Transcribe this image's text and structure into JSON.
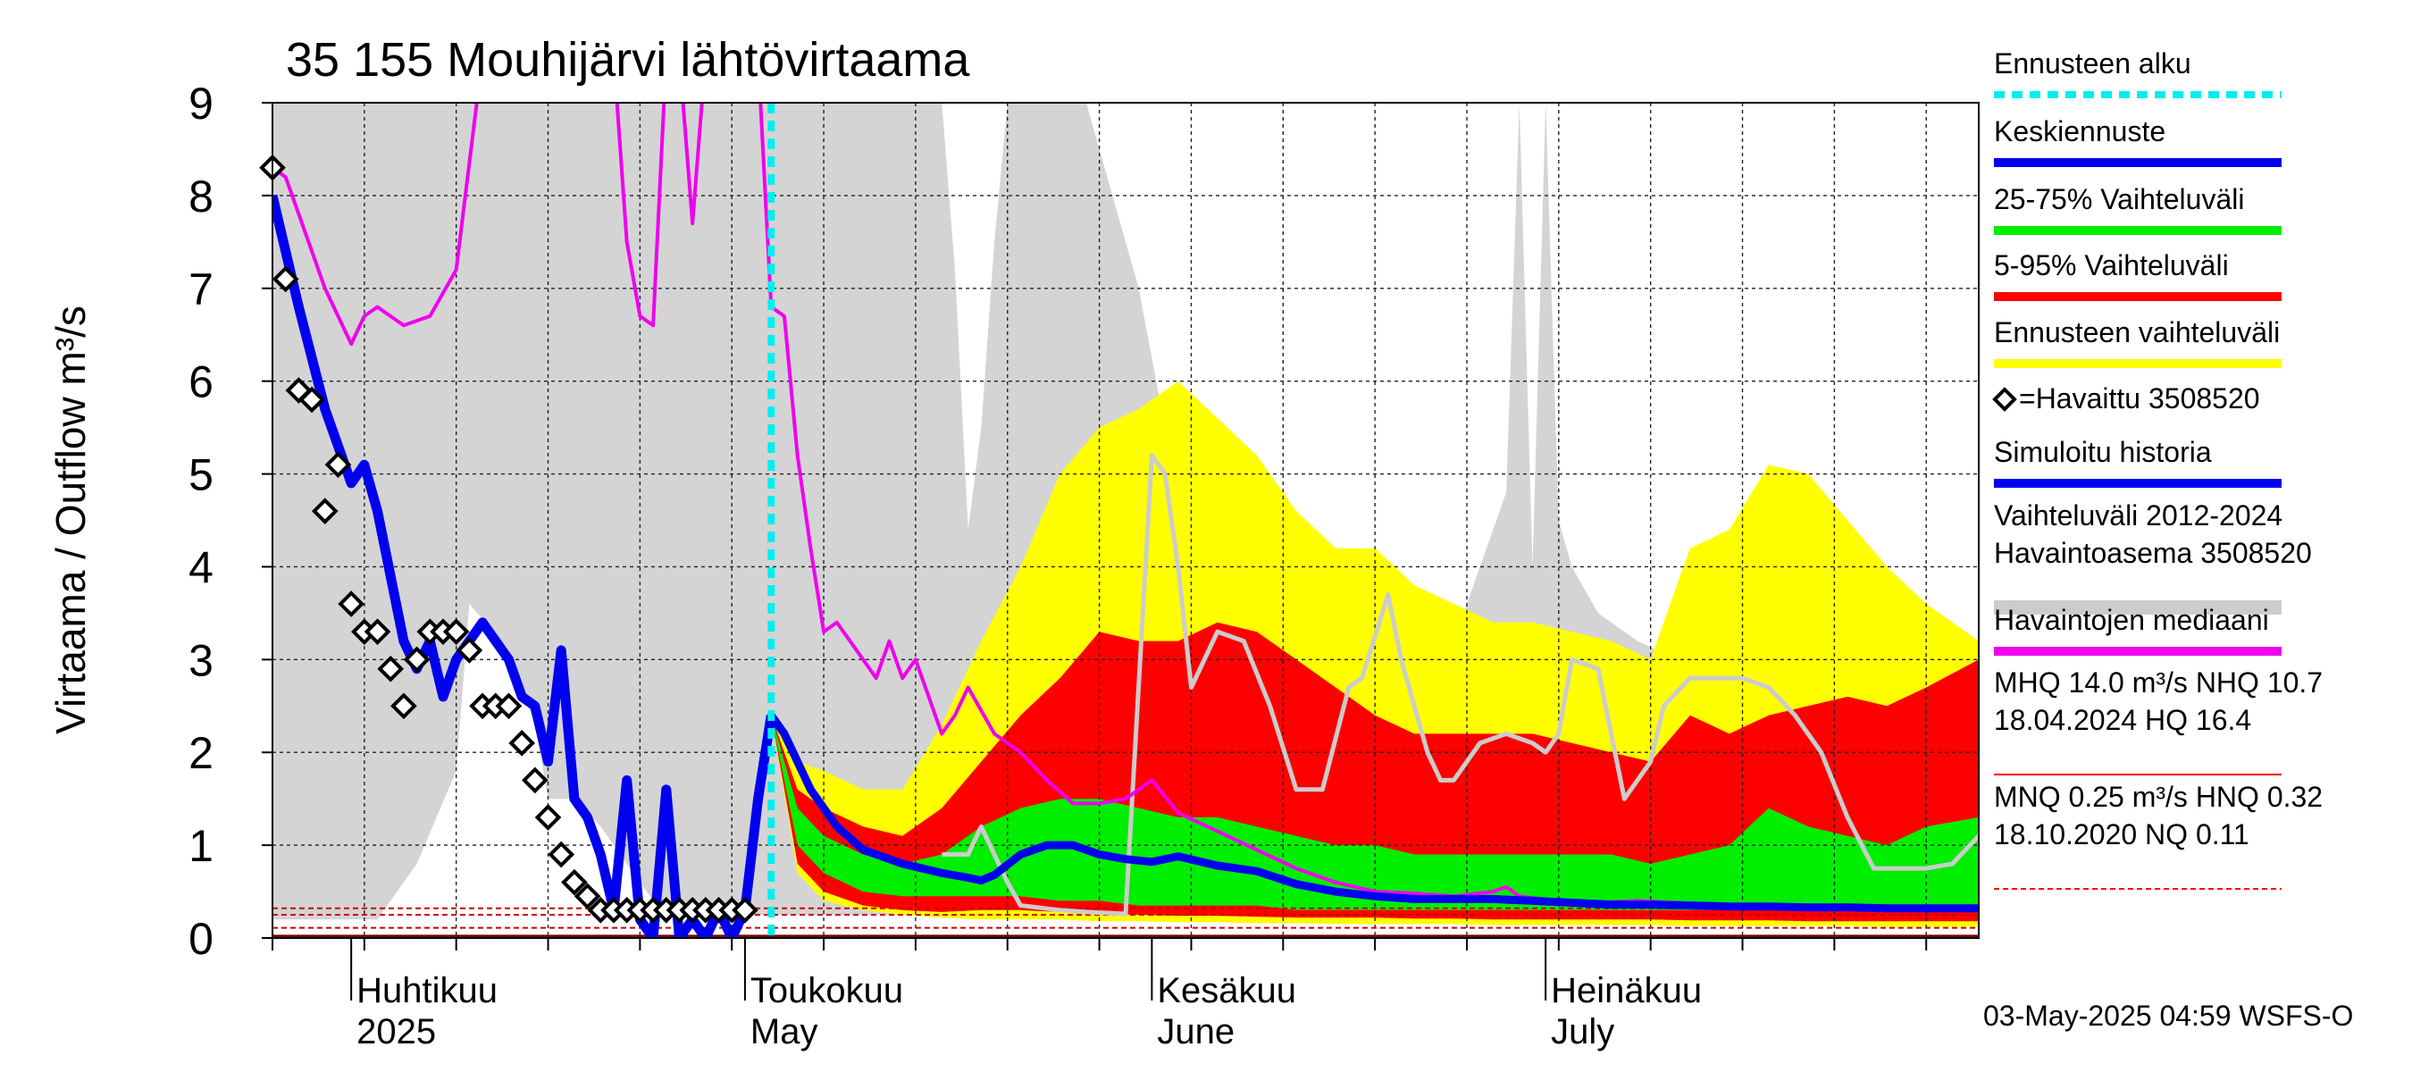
{
  "chart_title": "35 155 Mouhijärvi lähtövirtaama",
  "timestamp": "03-May-2025 04:59 WSFS-O",
  "colors": {
    "history": "#d4d4d4",
    "forecast_range": "#ffff00",
    "p5_95": "#ff0000",
    "p25_75": "#00ee00",
    "mean_forecast": "#0000ee",
    "simulated": "#0000ee",
    "median_obs": "#ee00ee",
    "forecast_start": "#00eeee",
    "light_gray_line": "#cccccc"
  },
  "legend": [
    {
      "label": "Ennusteen alku",
      "style": "dashed",
      "color": "#00eeee"
    },
    {
      "label": "Keskiennuste",
      "style": "line",
      "color": "#0000ee"
    },
    {
      "label": "25-75% Vaihteluväli",
      "style": "line",
      "color": "#00ee00"
    },
    {
      "label": "5-95% Vaihteluväli",
      "style": "line",
      "color": "#ff0000"
    },
    {
      "label": "Ennusteen vaihteluväli",
      "style": "line",
      "color": "#ffff00"
    },
    {
      "label": "=Havaittu 3508520",
      "style": "marker",
      "color": "#000000"
    },
    {
      "label": "Simuloitu historia",
      "style": "line",
      "color": "#0000ee"
    },
    {
      "label": "Vaihteluväli 2012-2024",
      "label2": " Havaintoasema 3508520",
      "style": "line",
      "color": "#cccccc"
    },
    {
      "label": "Havaintojen mediaani",
      "style": "line",
      "color": "#ee00ee"
    },
    {
      "label": "MHQ 14.0 m³/s NHQ 10.7",
      "label2": "18.04.2024 HQ 16.4",
      "style": "thin",
      "color": "#ff0000"
    },
    {
      "label": "MNQ 0.25 m³/s HNQ 0.32",
      "label2": "18.10.2020 NQ 0.11",
      "style": "dashed-thin",
      "color": "#ff0000"
    }
  ],
  "chart_data": {
    "type": "line",
    "title": "35 155 Mouhijärvi lähtövirtaama",
    "ylabel": "Virtaama / Outflow     m³/s",
    "ylim": [
      0,
      9
    ],
    "y_ticks": [
      "0",
      "1",
      "2",
      "3",
      "4",
      "5",
      "6",
      "7",
      "8",
      "9"
    ],
    "x_start": "2025-03-26",
    "x_end": "2025-08-03",
    "month_labels": [
      {
        "fi": "Huhtikuu",
        "en": "2025",
        "date": "2025-04-01"
      },
      {
        "fi": "Toukokuu",
        "en": "May",
        "date": "2025-05-01"
      },
      {
        "fi": "Kesäkuu",
        "en": "June",
        "date": "2025-06-01"
      },
      {
        "fi": "Heinäkuu",
        "en": "July",
        "date": "2025-07-01"
      }
    ],
    "grid": true,
    "forecast_start": "2025-05-03",
    "reference_lines": [
      {
        "name": "HNQ",
        "value": 0.32
      },
      {
        "name": "MNQ",
        "value": 0.25
      },
      {
        "name": "NQ",
        "value": 0.11
      }
    ],
    "history_range": {
      "dates": [
        "2025-03-26",
        "2025-04-03",
        "2025-04-06",
        "2025-04-09",
        "2025-04-10",
        "2025-04-13",
        "2025-04-15",
        "2025-04-16",
        "2025-04-18",
        "2025-04-20",
        "2025-04-22",
        "2025-04-24",
        "2025-04-26",
        "2025-05-01",
        "2025-05-05",
        "2025-05-08",
        "2025-05-10",
        "2025-05-12",
        "2025-05-14",
        "2025-05-16",
        "2025-05-17",
        "2025-05-18",
        "2025-05-19",
        "2025-05-20",
        "2025-05-21",
        "2025-05-23",
        "2025-05-25",
        "2025-05-27",
        "2025-05-29",
        "2025-05-31",
        "2025-06-02",
        "2025-06-04",
        "2025-06-06",
        "2025-06-09",
        "2025-06-12",
        "2025-06-15",
        "2025-06-18",
        "2025-06-21",
        "2025-06-24",
        "2025-06-26",
        "2025-06-28",
        "2025-06-29",
        "2025-06-30",
        "2025-07-01",
        "2025-07-02",
        "2025-07-03",
        "2025-07-05",
        "2025-07-08",
        "2025-07-11",
        "2025-07-14",
        "2025-07-17",
        "2025-07-20",
        "2025-07-23",
        "2025-07-26",
        "2025-07-29",
        "2025-08-03"
      ],
      "high": [
        9,
        9,
        9,
        9,
        9,
        9,
        9,
        9,
        9,
        9,
        9,
        9,
        9,
        9,
        9,
        9,
        9,
        9,
        9,
        9,
        7.2,
        4.4,
        5.5,
        7.5,
        9,
        9,
        9,
        9,
        8,
        7,
        5.5,
        5.5,
        5.5,
        5.2,
        4.5,
        4.0,
        3.6,
        3.0,
        3.2,
        4.0,
        4.8,
        9,
        4.0,
        9,
        4.5,
        4.0,
        3.5,
        3.2,
        3.0,
        3.0,
        3.0,
        3.0,
        2.8,
        2.5,
        2.4,
        2.4
      ],
      "low": [
        0.2,
        0.2,
        0.8,
        1.8,
        3.6,
        3.1,
        2.3,
        1.5,
        1.5,
        1.2,
        0.8,
        0.4,
        0.3,
        0.25,
        0.25,
        0.25,
        0.25,
        0.25,
        0.25,
        0.25,
        0.25,
        0.25,
        0.25,
        0.25,
        0.25,
        0.25,
        0.25,
        0.25,
        0.25,
        0.25,
        0.25,
        0.25,
        0.25,
        0.25,
        0.25,
        0.25,
        0.25,
        0.25,
        0.25,
        0.25,
        0.25,
        0.25,
        0.25,
        0.25,
        0.25,
        0.25,
        0.25,
        0.25,
        0.25,
        0.25,
        0.25,
        0.25,
        0.25,
        0.25,
        0.25,
        0.25
      ]
    },
    "forecast_band": {
      "dates": [
        "2025-05-03",
        "2025-05-05",
        "2025-05-07",
        "2025-05-10",
        "2025-05-13",
        "2025-05-16",
        "2025-05-19",
        "2025-05-22",
        "2025-05-25",
        "2025-05-28",
        "2025-05-31",
        "2025-06-03",
        "2025-06-06",
        "2025-06-09",
        "2025-06-12",
        "2025-06-15",
        "2025-06-18",
        "2025-06-21",
        "2025-06-24",
        "2025-06-27",
        "2025-06-30",
        "2025-07-03",
        "2025-07-06",
        "2025-07-09",
        "2025-07-12",
        "2025-07-15",
        "2025-07-18",
        "2025-07-21",
        "2025-07-24",
        "2025-07-27",
        "2025-07-30",
        "2025-08-03"
      ],
      "max": [
        2.4,
        1.9,
        1.8,
        1.6,
        1.6,
        2.3,
        3.2,
        4.0,
        5.0,
        5.5,
        5.7,
        6.0,
        5.6,
        5.2,
        4.6,
        4.2,
        4.2,
        3.8,
        3.6,
        3.4,
        3.4,
        3.3,
        3.2,
        3.0,
        4.2,
        4.4,
        5.1,
        5.0,
        4.5,
        4.0,
        3.6,
        3.2
      ],
      "p95": [
        2.4,
        1.6,
        1.4,
        1.2,
        1.1,
        1.4,
        1.9,
        2.4,
        2.8,
        3.3,
        3.2,
        3.2,
        3.4,
        3.3,
        3.0,
        2.7,
        2.4,
        2.2,
        2.2,
        2.2,
        2.2,
        2.1,
        2.0,
        1.9,
        2.4,
        2.2,
        2.4,
        2.5,
        2.6,
        2.5,
        2.7,
        3.0
      ],
      "p75": [
        2.4,
        1.4,
        1.1,
        0.9,
        0.8,
        0.9,
        1.2,
        1.4,
        1.5,
        1.5,
        1.4,
        1.3,
        1.3,
        1.2,
        1.1,
        1.0,
        1.0,
        0.9,
        0.9,
        0.9,
        0.9,
        0.9,
        0.9,
        0.8,
        0.9,
        1.0,
        1.4,
        1.2,
        1.1,
        1.0,
        1.2,
        1.3
      ],
      "p25": [
        2.4,
        1.0,
        0.7,
        0.5,
        0.45,
        0.45,
        0.45,
        0.45,
        0.4,
        0.4,
        0.35,
        0.35,
        0.35,
        0.35,
        0.3,
        0.3,
        0.3,
        0.3,
        0.3,
        0.3,
        0.3,
        0.3,
        0.3,
        0.3,
        0.3,
        0.3,
        0.3,
        0.3,
        0.3,
        0.3,
        0.3,
        0.3
      ],
      "p5": [
        2.4,
        0.8,
        0.5,
        0.35,
        0.3,
        0.28,
        0.3,
        0.3,
        0.28,
        0.26,
        0.25,
        0.24,
        0.24,
        0.23,
        0.22,
        0.22,
        0.22,
        0.21,
        0.21,
        0.2,
        0.2,
        0.2,
        0.2,
        0.2,
        0.19,
        0.19,
        0.19,
        0.18,
        0.18,
        0.18,
        0.18,
        0.18
      ],
      "min": [
        2.4,
        0.7,
        0.4,
        0.3,
        0.25,
        0.22,
        0.2,
        0.2,
        0.2,
        0.18,
        0.18,
        0.17,
        0.17,
        0.16,
        0.16,
        0.15,
        0.15,
        0.15,
        0.15,
        0.14,
        0.14,
        0.14,
        0.14,
        0.14,
        0.13,
        0.13,
        0.13,
        0.13,
        0.13,
        0.12,
        0.12,
        0.12
      ]
    },
    "series": [
      {
        "name": "Keskiennuste",
        "dates": [
          "2025-05-03",
          "2025-05-04",
          "2025-05-06",
          "2025-05-08",
          "2025-05-10",
          "2025-05-13",
          "2025-05-16",
          "2025-05-18",
          "2025-05-19",
          "2025-05-20",
          "2025-05-22",
          "2025-05-24",
          "2025-05-26",
          "2025-05-28",
          "2025-05-30",
          "2025-06-01",
          "2025-06-03",
          "2025-06-06",
          "2025-06-09",
          "2025-06-12",
          "2025-06-15",
          "2025-06-18",
          "2025-06-21",
          "2025-06-24",
          "2025-06-27",
          "2025-06-30",
          "2025-07-03",
          "2025-07-06",
          "2025-07-09",
          "2025-07-12",
          "2025-07-15",
          "2025-07-18",
          "2025-07-21",
          "2025-07-24",
          "2025-07-27",
          "2025-07-30",
          "2025-08-03"
        ],
        "values": [
          2.4,
          2.2,
          1.6,
          1.2,
          0.95,
          0.8,
          0.7,
          0.65,
          0.62,
          0.68,
          0.9,
          1.0,
          1.0,
          0.9,
          0.85,
          0.82,
          0.88,
          0.78,
          0.72,
          0.58,
          0.5,
          0.45,
          0.42,
          0.42,
          0.42,
          0.4,
          0.38,
          0.36,
          0.36,
          0.35,
          0.34,
          0.34,
          0.33,
          0.33,
          0.32,
          0.32,
          0.32
        ]
      },
      {
        "name": "Simuloitu historia",
        "dates": [
          "2025-03-26",
          "2025-03-28",
          "2025-03-30",
          "2025-04-01",
          "2025-04-02",
          "2025-04-03",
          "2025-04-05",
          "2025-04-06",
          "2025-04-07",
          "2025-04-08",
          "2025-04-09",
          "2025-04-10",
          "2025-04-11",
          "2025-04-12",
          "2025-04-13",
          "2025-04-14",
          "2025-04-15",
          "2025-04-16",
          "2025-04-17",
          "2025-04-18",
          "2025-04-19",
          "2025-04-20",
          "2025-04-21",
          "2025-04-22",
          "2025-04-23",
          "2025-04-24",
          "2025-04-25",
          "2025-04-26",
          "2025-04-27",
          "2025-04-28",
          "2025-04-29",
          "2025-04-30",
          "2025-05-01",
          "2025-05-02",
          "2025-05-03"
        ],
        "values": [
          8.0,
          6.8,
          5.7,
          4.9,
          5.1,
          4.6,
          3.2,
          2.9,
          3.2,
          2.6,
          3.0,
          3.2,
          3.4,
          3.2,
          3.0,
          2.6,
          2.5,
          1.9,
          3.1,
          1.5,
          1.3,
          0.9,
          0.3,
          1.7,
          0.2,
          0.0,
          1.6,
          0.0,
          0.2,
          0.0,
          0.3,
          0.0,
          0.3,
          1.5,
          2.4
        ]
      },
      {
        "name": "Havaintojen mediaani",
        "dates": [
          "2025-03-26",
          "2025-03-27",
          "2025-03-30",
          "2025-04-01",
          "2025-04-02",
          "2025-04-03",
          "2025-04-05",
          "2025-04-07",
          "2025-04-09",
          "2025-04-11",
          "2025-04-13",
          "2025-04-15",
          "2025-04-17",
          "2025-04-19",
          "2025-04-21",
          "2025-04-22",
          "2025-04-23",
          "2025-04-24",
          "2025-04-25",
          "2025-04-26",
          "2025-04-27",
          "2025-04-28",
          "2025-04-29",
          "2025-04-30",
          "2025-05-01",
          "2025-05-02",
          "2025-05-03",
          "2025-05-04",
          "2025-05-05",
          "2025-05-06",
          "2025-05-07",
          "2025-05-08",
          "2025-05-10",
          "2025-05-11",
          "2025-05-12",
          "2025-05-13",
          "2025-05-14",
          "2025-05-15",
          "2025-05-16",
          "2025-05-17",
          "2025-05-18",
          "2025-05-20",
          "2025-05-22",
          "2025-05-24",
          "2025-05-26",
          "2025-05-28",
          "2025-05-30",
          "2025-06-01",
          "2025-06-03",
          "2025-06-06",
          "2025-06-09",
          "2025-06-12",
          "2025-06-15",
          "2025-06-18",
          "2025-06-21",
          "2025-06-24",
          "2025-06-27",
          "2025-06-28",
          "2025-06-29",
          "2025-07-02",
          "2025-07-05",
          "2025-07-08",
          "2025-07-11",
          "2025-07-14",
          "2025-07-17",
          "2025-07-20",
          "2025-07-23",
          "2025-07-26",
          "2025-07-29",
          "2025-08-03"
        ],
        "values": [
          8.3,
          8.2,
          7.0,
          6.4,
          6.7,
          6.8,
          6.6,
          6.7,
          7.2,
          9.5,
          9.5,
          9.5,
          9.5,
          9.5,
          9.5,
          7.5,
          6.7,
          6.6,
          9.5,
          9.5,
          7.7,
          9.5,
          9.5,
          9.5,
          9.5,
          9.5,
          6.8,
          6.7,
          5.2,
          4.2,
          3.3,
          3.4,
          3.0,
          2.8,
          3.2,
          2.8,
          3.0,
          2.6,
          2.2,
          2.4,
          2.7,
          2.2,
          2.0,
          1.7,
          1.45,
          1.45,
          1.5,
          1.7,
          1.35,
          1.15,
          0.95,
          0.75,
          0.6,
          0.5,
          0.48,
          0.45,
          0.5,
          0.55,
          0.45,
          0.4,
          0.38,
          0.4,
          0.38,
          0.36,
          0.35,
          0.35,
          0.33,
          0.32,
          0.3,
          0.3
        ]
      },
      {
        "name": "Havaittu 3508520",
        "dates": [
          "2025-03-26",
          "2025-03-27",
          "2025-03-28",
          "2025-03-29",
          "2025-03-30",
          "2025-03-31",
          "2025-04-01",
          "2025-04-02",
          "2025-04-03",
          "2025-04-04",
          "2025-04-05",
          "2025-04-06",
          "2025-04-07",
          "2025-04-08",
          "2025-04-09",
          "2025-04-10",
          "2025-04-11",
          "2025-04-12",
          "2025-04-13",
          "2025-04-14",
          "2025-04-15",
          "2025-04-16",
          "2025-04-17",
          "2025-04-18",
          "2025-04-19",
          "2025-04-20",
          "2025-04-21",
          "2025-04-22",
          "2025-04-23",
          "2025-04-24",
          "2025-04-25",
          "2025-04-26",
          "2025-04-27",
          "2025-04-28",
          "2025-04-29",
          "2025-04-30",
          "2025-05-01"
        ],
        "values": [
          8.3,
          7.1,
          5.9,
          5.8,
          4.6,
          5.1,
          3.6,
          3.3,
          3.3,
          2.9,
          2.5,
          3.0,
          3.3,
          3.3,
          3.3,
          3.1,
          2.5,
          2.5,
          2.5,
          2.1,
          1.7,
          1.3,
          0.9,
          0.6,
          0.45,
          0.3,
          0.3,
          0.3,
          0.3,
          0.3,
          0.3,
          0.3,
          0.3,
          0.3,
          0.3,
          0.3,
          0.3
        ]
      },
      {
        "name": "Vaihteluväli 2012-2024 gray line",
        "dates": [
          "2025-05-16",
          "2025-05-18",
          "2025-05-19",
          "2025-05-21",
          "2025-05-22",
          "2025-05-25",
          "2025-05-27",
          "2025-05-30",
          "2025-06-01",
          "2025-06-02",
          "2025-06-03",
          "2025-06-04",
          "2025-06-06",
          "2025-06-08",
          "2025-06-10",
          "2025-06-12",
          "2025-06-14",
          "2025-06-16",
          "2025-06-17",
          "2025-06-19",
          "2025-06-20",
          "2025-06-21",
          "2025-06-22",
          "2025-06-23",
          "2025-06-24",
          "2025-06-26",
          "2025-06-28",
          "2025-06-30",
          "2025-07-01",
          "2025-07-02",
          "2025-07-03",
          "2025-07-05",
          "2025-07-07",
          "2025-07-08",
          "2025-07-09",
          "2025-07-10",
          "2025-07-12",
          "2025-07-14",
          "2025-07-16",
          "2025-07-18",
          "2025-07-20",
          "2025-07-22",
          "2025-07-24",
          "2025-07-26",
          "2025-07-28",
          "2025-07-30",
          "2025-08-01",
          "2025-08-03"
        ],
        "values": [
          0.9,
          0.9,
          1.2,
          0.6,
          0.35,
          0.3,
          0.28,
          0.26,
          5.2,
          5.0,
          4.0,
          2.7,
          3.3,
          3.2,
          2.5,
          1.6,
          1.6,
          2.7,
          2.8,
          3.7,
          3.0,
          2.5,
          2.0,
          1.7,
          1.7,
          2.1,
          2.2,
          2.1,
          2.0,
          2.2,
          3.0,
          2.9,
          1.5,
          1.7,
          1.9,
          2.5,
          2.8,
          2.8,
          2.8,
          2.7,
          2.4,
          2.0,
          1.3,
          0.75,
          0.75,
          0.75,
          0.8,
          1.1
        ]
      }
    ]
  }
}
